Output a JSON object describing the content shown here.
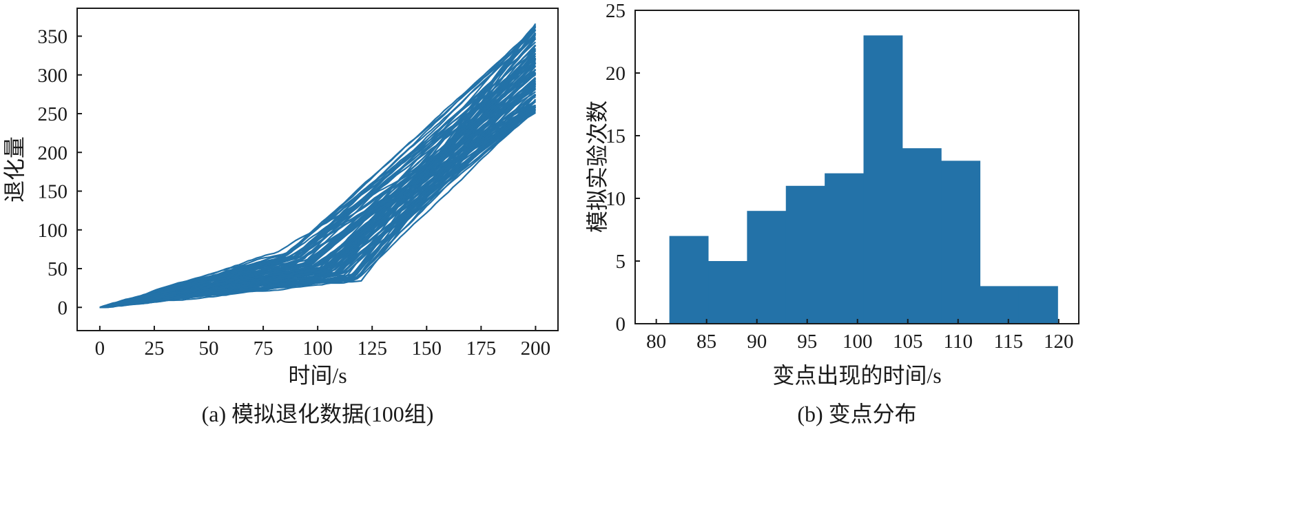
{
  "color": "#2372a8",
  "chart_data": [
    {
      "type": "line",
      "caption": "(a) 模拟退化数据(100组)",
      "xlabel": "时间/s",
      "ylabel": "退化量",
      "xlim": [
        -10.4,
        210.3
      ],
      "ylim": [
        -30,
        386
      ],
      "xticks": [
        0,
        25,
        50,
        75,
        100,
        125,
        150,
        175,
        200
      ],
      "yticks": [
        0,
        50,
        100,
        150,
        200,
        250,
        300,
        350
      ],
      "grid": false,
      "series_count": 100,
      "series_model": {
        "x_range": [
          0,
          200
        ],
        "start_value": 0,
        "change_point_range": [
          81,
          120
        ],
        "value_at_change_point_range": [
          28,
          78
        ],
        "final_value_range": [
          250,
          368
        ]
      }
    },
    {
      "type": "bar",
      "subtype": "histogram",
      "caption": "(b) 变点分布",
      "xlabel": "变点出现的时间/s",
      "ylabel": "模拟实验次数",
      "xlim": [
        77.9,
        122
      ],
      "ylim": [
        0,
        25
      ],
      "xticks": [
        80,
        85,
        90,
        95,
        100,
        105,
        110,
        115,
        120
      ],
      "yticks": [
        0,
        5,
        10,
        15,
        20,
        25
      ],
      "grid": false,
      "bin_edges": [
        81.3,
        85.16,
        89.02,
        92.88,
        96.74,
        100.6,
        104.46,
        108.32,
        112.18,
        116.04,
        119.9
      ],
      "values": [
        7,
        5,
        9,
        11,
        12,
        23,
        14,
        13,
        3,
        3
      ]
    }
  ]
}
